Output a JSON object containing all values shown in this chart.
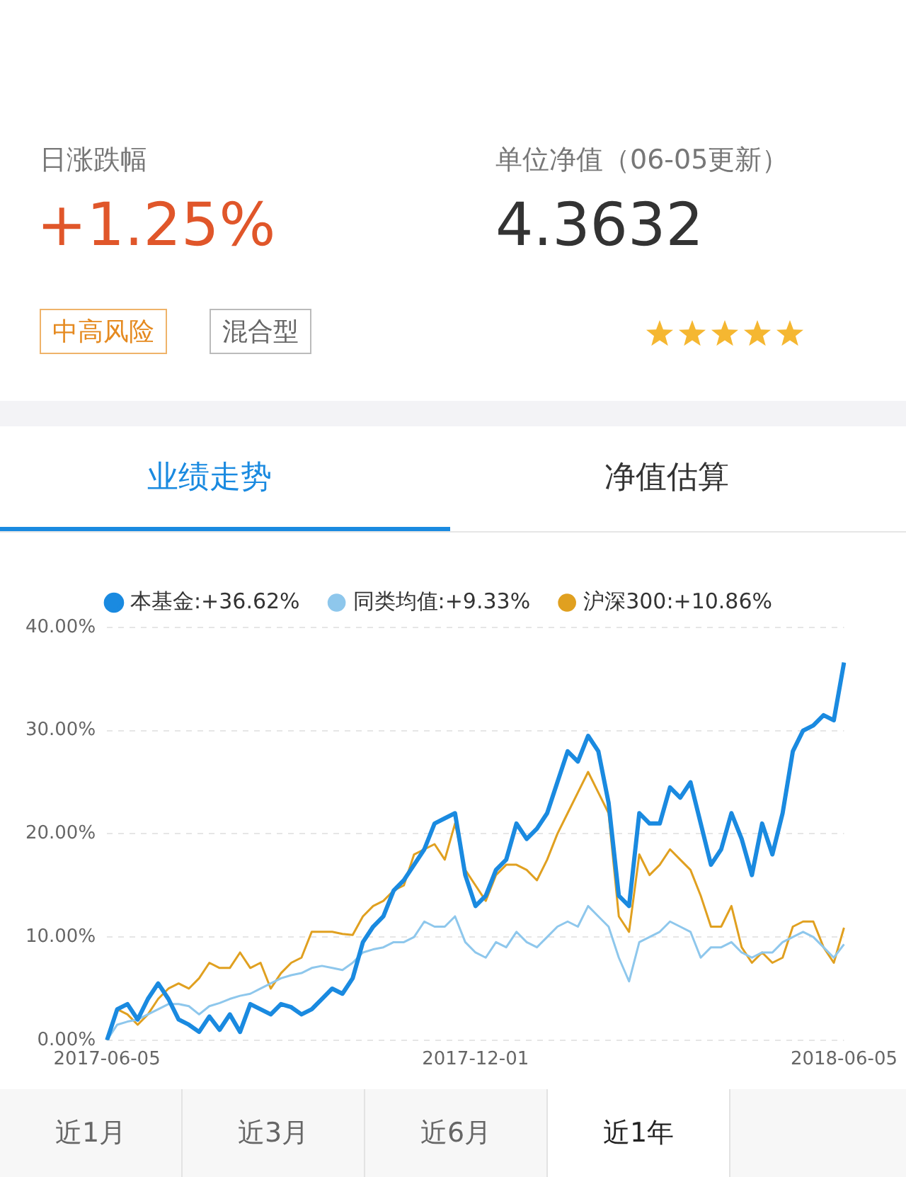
{
  "chart_data": {
    "type": "line",
    "annotations": [
      "日涨跌幅",
      "+1.25%",
      "单位净值（06-05更新）",
      "4.3632",
      "中高风险",
      "混合型",
      "业绩走势",
      "净值估算",
      "近1月",
      "近3月",
      "近6月",
      "近1年"
    ],
    "categories": [
      "2017-06-05",
      null,
      null,
      null,
      null,
      null,
      null,
      null,
      null,
      null,
      null,
      null,
      null,
      null,
      null,
      null,
      null,
      null,
      null,
      null,
      null,
      null,
      null,
      null,
      null,
      null,
      null,
      null,
      null,
      null,
      null,
      null,
      null,
      null,
      null,
      null,
      "2017-12-01",
      null,
      null,
      null,
      null,
      null,
      null,
      null,
      null,
      null,
      null,
      null,
      null,
      null,
      null,
      null,
      null,
      null,
      null,
      null,
      null,
      null,
      null,
      null,
      null,
      null,
      null,
      null,
      null,
      null,
      null,
      null,
      null,
      null,
      null,
      null,
      "2018-06-05"
    ],
    "series": [
      {
        "name": "本基金:+36.62%",
        "color": "#1a8ae0",
        "values": [
          0,
          3,
          3.5,
          2,
          4,
          5.5,
          4,
          2,
          1.5,
          0.8,
          2.3,
          1,
          2.5,
          0.8,
          3.5,
          3,
          2.5,
          3.5,
          3.2,
          2.5,
          3,
          4,
          5,
          4.5,
          6,
          9.5,
          11,
          12,
          14.5,
          15.5,
          17,
          18.5,
          21,
          21.5,
          22,
          16,
          13,
          14,
          16.5,
          17.5,
          21,
          19.5,
          20.5,
          22,
          25,
          28,
          27,
          29.5,
          28,
          23,
          14,
          13,
          22,
          21,
          21,
          24.5,
          23.5,
          25,
          21,
          17,
          18.5,
          22,
          19.5,
          16,
          21,
          18,
          22,
          28,
          30,
          30.5,
          31.5,
          31,
          36.6
        ]
      },
      {
        "name": "同类均值:+9.33%",
        "color": "#8ec7ec",
        "values": [
          0,
          1.5,
          1.8,
          2,
          2.5,
          3,
          3.5,
          3.5,
          3.3,
          2.5,
          3.3,
          3.6,
          4,
          4.3,
          4.5,
          5,
          5.5,
          6,
          6.3,
          6.5,
          7,
          7.2,
          7,
          6.8,
          7.5,
          8.5,
          8.8,
          9,
          9.5,
          9.5,
          10,
          11.5,
          11,
          11,
          12,
          9.5,
          8.5,
          8,
          9.5,
          9,
          10.5,
          9.5,
          9,
          10,
          11,
          11.5,
          11,
          13,
          12,
          11,
          8,
          5.7,
          9.5,
          10,
          10.5,
          11.5,
          11,
          10.5,
          8,
          9,
          9,
          9.5,
          8.5,
          8,
          8.5,
          8.5,
          9.5,
          10,
          10.5,
          10,
          9,
          8,
          9.3
        ]
      },
      {
        "name": "沪深300:+10.86%",
        "color": "#e0a020",
        "values": [
          0,
          3,
          2.5,
          1.5,
          2.5,
          4,
          5,
          5.5,
          5,
          6,
          7.5,
          7,
          7,
          8.5,
          7,
          7.5,
          5,
          6.5,
          7.5,
          8,
          10.5,
          10.5,
          10.5,
          10.3,
          10.2,
          12,
          13,
          13.5,
          14.5,
          15,
          18,
          18.5,
          19,
          17.5,
          21,
          16.5,
          15,
          13.5,
          16,
          17,
          17,
          16.5,
          15.5,
          17.5,
          20,
          22,
          24,
          26,
          24,
          22,
          12,
          10.5,
          18,
          16,
          17,
          18.5,
          17.5,
          16.5,
          14,
          11,
          11,
          13,
          9,
          7.5,
          8.5,
          7.5,
          8,
          11,
          11.5,
          11.5,
          9,
          7.5,
          10.9
        ]
      }
    ],
    "ylim": [
      0,
      40
    ],
    "yticks": [
      {
        "value": 0,
        "label": "0.00%"
      },
      {
        "value": 10,
        "label": "10.00%"
      },
      {
        "value": 20,
        "label": "20.00%"
      },
      {
        "value": 30,
        "label": "30.00%"
      },
      {
        "value": 40,
        "label": "40.00%"
      }
    ],
    "grid": "y",
    "legend": "top",
    "marker": "none",
    "line_style": "solid"
  }
}
